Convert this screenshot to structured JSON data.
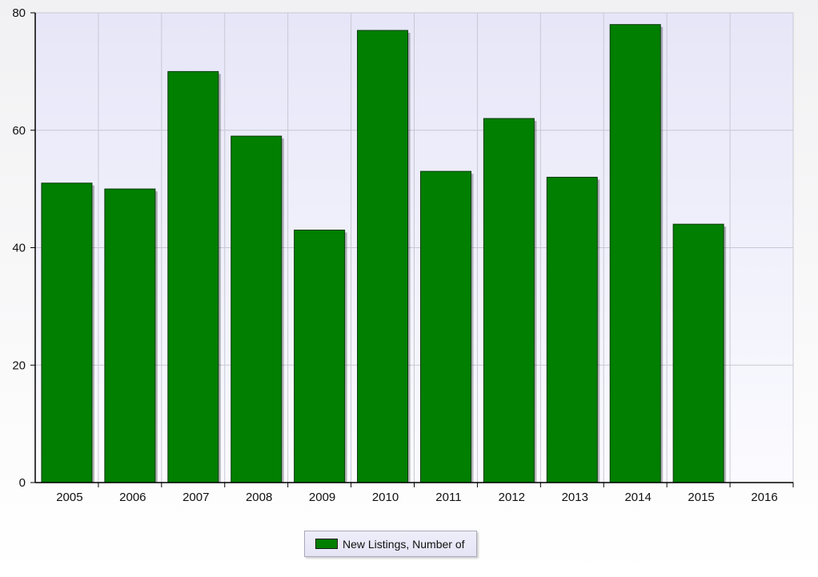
{
  "chart_data": {
    "type": "bar",
    "categories": [
      "2005",
      "2006",
      "2007",
      "2008",
      "2009",
      "2010",
      "2011",
      "2012",
      "2013",
      "2014",
      "2015"
    ],
    "series": [
      {
        "name": "New Listings, Number of",
        "values": [
          51,
          50,
          70,
          59,
          43,
          77,
          53,
          62,
          52,
          78,
          44
        ],
        "color": "#007f00"
      }
    ],
    "x_ticks": [
      "2005",
      "2006",
      "2007",
      "2008",
      "2009",
      "2010",
      "2011",
      "2012",
      "2013",
      "2014",
      "2015",
      "2016"
    ],
    "y_ticks": [
      0,
      20,
      40,
      60,
      80
    ],
    "ylim": [
      0,
      80
    ],
    "grid": true,
    "legend_position": "bottom-center",
    "colors": {
      "bar_fill": "#007f00",
      "bar_stroke": "#0a3a0a",
      "plot_bg_top": "#e6e6f8",
      "plot_bg_bottom": "#fbfbff",
      "grid": "#c8c8d4",
      "axis": "#000000"
    }
  }
}
